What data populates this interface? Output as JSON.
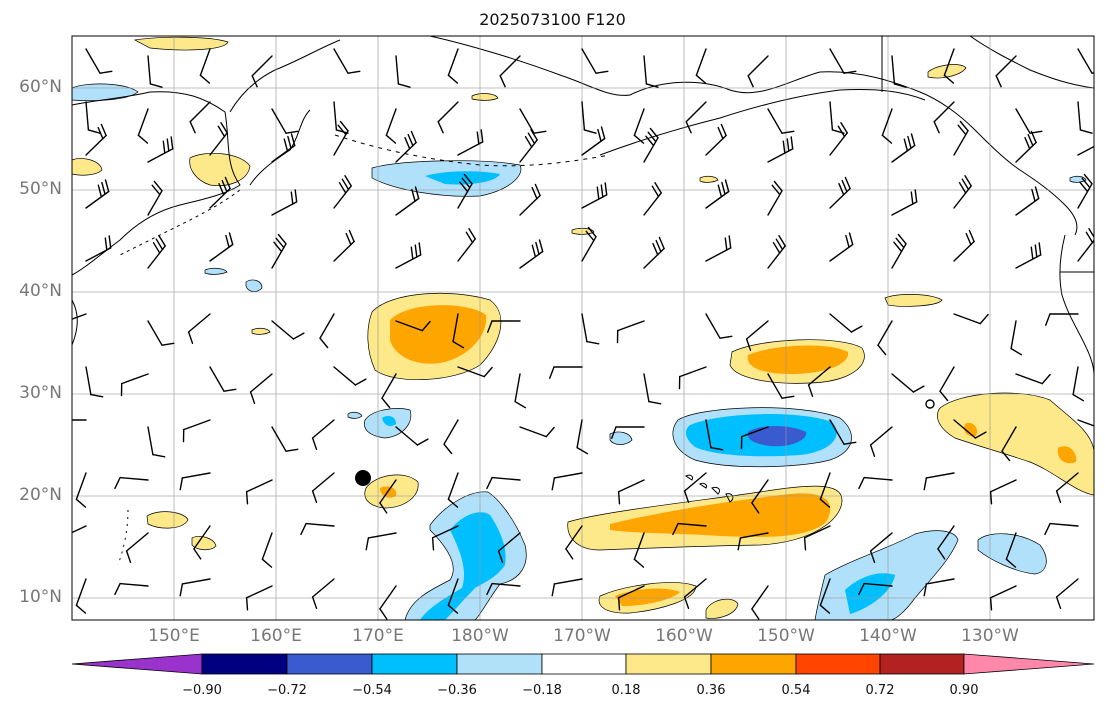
{
  "title": "2025073100 F120",
  "lat_labels": [
    "60°N",
    "50°N",
    "40°N",
    "30°N",
    "20°N",
    "10°N"
  ],
  "lon_labels": [
    "150°E",
    "160°E",
    "170°E",
    "180°W",
    "170°W",
    "160°W",
    "150°W",
    "140°W",
    "130°W"
  ],
  "colorbar": {
    "ticks": [
      "−0.90",
      "−0.72",
      "−0.54",
      "−0.36",
      "−0.18",
      "0.18",
      "0.36",
      "0.54",
      "0.72",
      "0.90"
    ],
    "colors": {
      "under": "#9933cc",
      "b1": "#000080",
      "b2": "#3a5bcf",
      "b3": "#00bfff",
      "b4": "#b0e0fa",
      "b5": "#ffffff",
      "b6": "#fde98a",
      "b7": "#ffa500",
      "b8": "#ff4500",
      "b9": "#b22222",
      "over": "#ff88aa"
    }
  }
}
